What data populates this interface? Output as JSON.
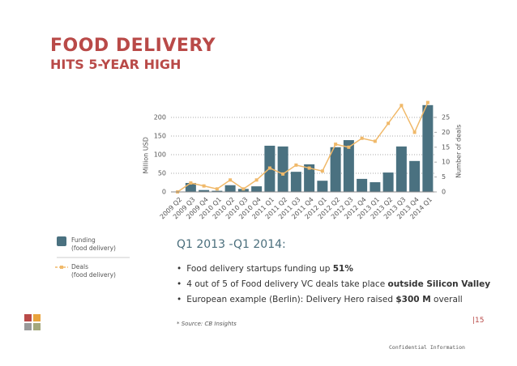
{
  "header": {
    "title": "FOOD DELIVERY",
    "subtitle": "HITS 5-YEAR HIGH"
  },
  "chart_data": {
    "type": "bar_line",
    "categories": [
      "2009 Q2",
      "2009 Q3",
      "2009 Q4",
      "2010 Q1",
      "2010 Q2",
      "2010 Q3",
      "2010 Q4",
      "2011 Q1",
      "2011 Q2",
      "2011 Q3",
      "2011 Q4",
      "2012 Q1",
      "2012 Q2",
      "2012 Q3",
      "2012 Q4",
      "2013 Q1",
      "2013 Q2",
      "2013 Q3",
      "2013 Q4",
      "2014 Q1"
    ],
    "series": [
      {
        "name": "Funding\n(food delivery)",
        "color": "#4a7180",
        "type": "bar",
        "values": [
          0,
          24,
          5,
          3,
          18,
          8,
          15,
          124,
          122,
          54,
          74,
          30,
          120,
          139,
          35,
          26,
          52,
          122,
          83,
          233
        ]
      },
      {
        "name": "Deals\n(food delivery)",
        "color": "#f0b96a",
        "type": "line",
        "axis": "y2",
        "values": [
          0,
          3,
          2,
          1,
          4,
          1,
          4,
          8,
          6,
          9,
          8,
          7,
          16,
          15,
          18,
          17,
          23,
          29,
          20,
          30
        ]
      }
    ],
    "ylabel": "Million USD",
    "y2label": "Number of deals",
    "ylim": [
      0,
      240
    ],
    "yticks": [
      0,
      50,
      100,
      150,
      200
    ],
    "y2lim": [
      0,
      30
    ],
    "y2ticks": [
      0,
      5,
      10,
      15,
      20,
      25
    ],
    "grid": true
  },
  "body": {
    "heading": "Q1 2013 -Q1 2014:",
    "bullets": [
      [
        {
          "text": "Food delivery startups funding up ",
          "bold": false
        },
        {
          "text": "51%",
          "bold": true
        }
      ],
      [
        {
          "text": "4 out of 5 of Food delivery VC deals take place ",
          "bold": false
        },
        {
          "text": "outside Silicon Valley",
          "bold": true
        }
      ],
      [
        {
          "text": "European example (Berlin): Delivery Hero raised ",
          "bold": false
        },
        {
          "text": "$300 M",
          "bold": true
        },
        {
          "text": " overall",
          "bold": false
        }
      ]
    ],
    "source": "* Source: CB Insights",
    "page": "|15",
    "footer": "Confidential Information"
  }
}
